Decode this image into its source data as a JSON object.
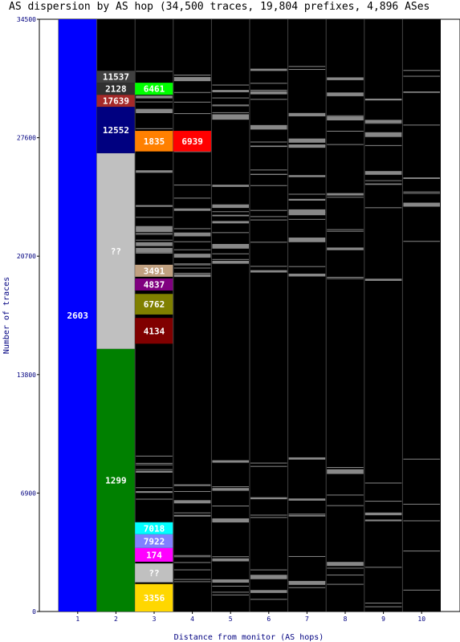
{
  "chart_data": {
    "type": "bar",
    "title": "AS dispersion by AS hop (34,500 traces, 19,804 prefixes, 4,896 ASes",
    "xlabel": "Distance from monitor (AS hops)",
    "ylabel": "Number of traces",
    "ylim": [
      0,
      34500
    ],
    "yticks": [
      "0",
      "6900",
      "13800",
      "20700",
      "27600",
      "34500"
    ],
    "xticks": [
      "1",
      "2",
      "3",
      "4",
      "5",
      "6",
      "7",
      "8",
      "9",
      "10"
    ],
    "background": "#000000",
    "lines_color": "#888888",
    "columns": [
      {
        "hop": 1,
        "segments": [
          {
            "label": "2603",
            "from": 0,
            "to": 34500,
            "color": "#0000ff"
          }
        ]
      },
      {
        "hop": 2,
        "segments": [
          {
            "label": "1299",
            "from": 0,
            "to": 15300,
            "color": "#008000"
          },
          {
            "label": "??",
            "from": 15300,
            "to": 26700,
            "color": "#c0c0c0"
          },
          {
            "label": "12552",
            "from": 26700,
            "to": 29400,
            "color": "#000080"
          },
          {
            "label": "17639",
            "from": 29400,
            "to": 30100,
            "color": "#a52a2a"
          },
          {
            "label": "2128",
            "from": 30100,
            "to": 30800,
            "color": "#303030"
          },
          {
            "label": "11537",
            "from": 30800,
            "to": 31500,
            "color": "#404040"
          }
        ]
      },
      {
        "hop": 3,
        "segments": [
          {
            "label": "3356",
            "from": 0,
            "to": 1600,
            "color": "#ffd700"
          },
          {
            "label": "??",
            "from": 1700,
            "to": 2800,
            "color": "#c0c0c0"
          },
          {
            "label": "174",
            "from": 2900,
            "to": 3700,
            "color": "#ff00ff"
          },
          {
            "label": "7922",
            "from": 3700,
            "to": 4500,
            "color": "#8080ff"
          },
          {
            "label": "7018",
            "from": 4500,
            "to": 5200,
            "color": "#00ffff"
          },
          {
            "label": "4134",
            "from": 15600,
            "to": 17100,
            "color": "#800000"
          },
          {
            "label": "6762",
            "from": 17300,
            "to": 18500,
            "color": "#808000"
          },
          {
            "label": "4837",
            "from": 18700,
            "to": 19400,
            "color": "#800080"
          },
          {
            "label": "3491",
            "from": 19500,
            "to": 20200,
            "color": "#c0a080"
          },
          {
            "label": "1835",
            "from": 26800,
            "to": 28000,
            "color": "#ff8000"
          },
          {
            "label": "6461",
            "from": 30100,
            "to": 30800,
            "color": "#00ff00"
          }
        ]
      },
      {
        "hop": 4,
        "segments": [
          {
            "label": "6939",
            "from": 26800,
            "to": 28000,
            "color": "#ff0000"
          }
        ]
      },
      {
        "hop": 5,
        "segments": []
      },
      {
        "hop": 6,
        "segments": []
      },
      {
        "hop": 7,
        "segments": []
      },
      {
        "hop": 8,
        "segments": []
      },
      {
        "hop": 9,
        "segments": []
      },
      {
        "hop": 10,
        "segments": []
      }
    ]
  }
}
